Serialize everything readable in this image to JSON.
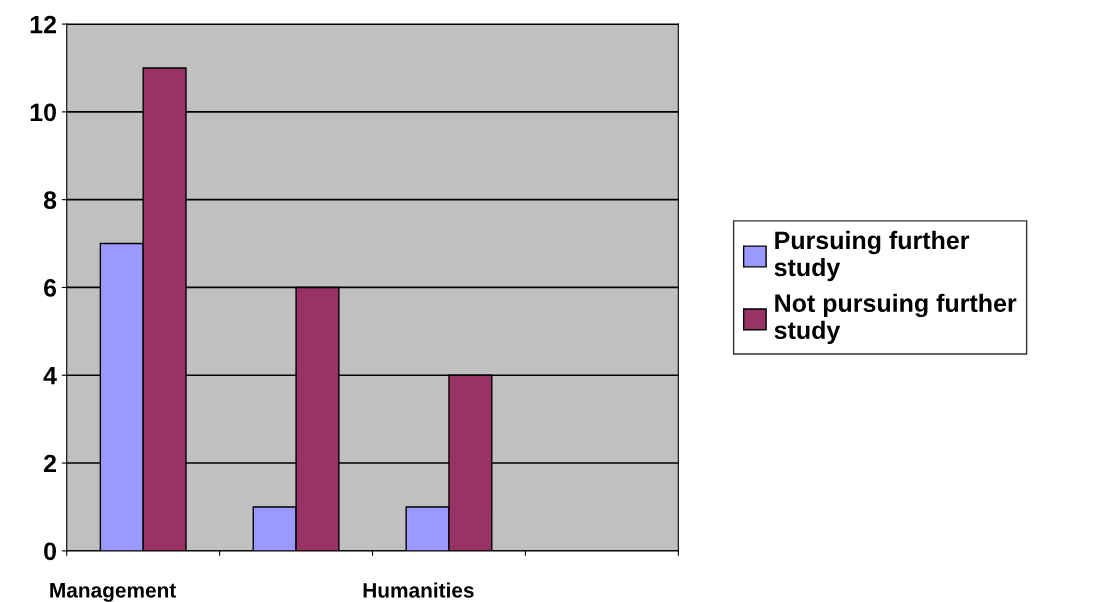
{
  "chart_data": {
    "type": "bar",
    "categories": [
      "Management",
      null,
      "Humanities",
      null
    ],
    "series": [
      {
        "name": "Pursuing further study",
        "color": "#9999ff",
        "values": [
          7,
          1,
          1,
          null
        ]
      },
      {
        "name": "Not pursuing further study",
        "color": "#993366",
        "values": [
          11,
          6,
          4,
          null
        ]
      }
    ],
    "ylim": [
      0,
      12
    ],
    "yticks": [
      0,
      2,
      4,
      6,
      8,
      10,
      12
    ],
    "grid": "y",
    "legend": "right"
  }
}
